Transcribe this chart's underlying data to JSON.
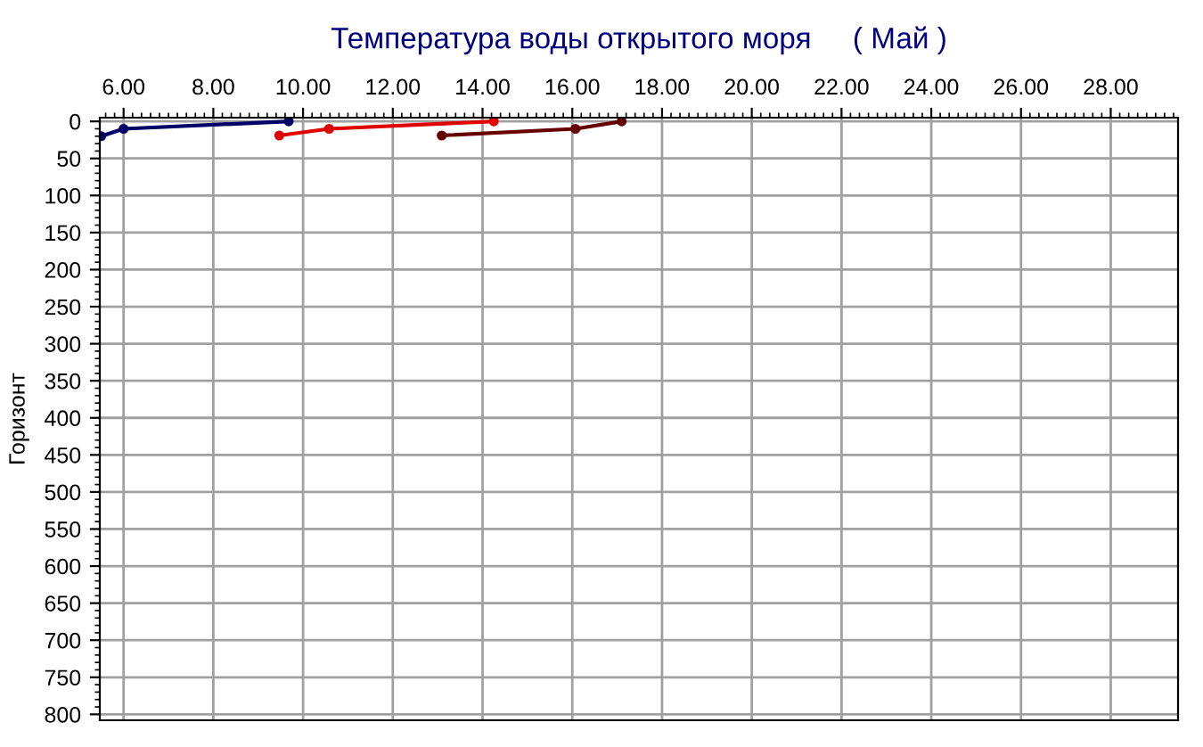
{
  "chart_data": {
    "type": "line",
    "title": "Температура воды открытого моря     ( Май )",
    "ylabel": "Горизонт",
    "xlim": [
      5.47,
      29.5
    ],
    "ylim": [
      808,
      -5
    ],
    "xticks": [
      {
        "value": 6,
        "label": "6.00"
      },
      {
        "value": 8,
        "label": "8.00"
      },
      {
        "value": 10,
        "label": "10.00"
      },
      {
        "value": 12,
        "label": "12.00"
      },
      {
        "value": 14,
        "label": "14.00"
      },
      {
        "value": 16,
        "label": "16.00"
      },
      {
        "value": 18,
        "label": "18.00"
      },
      {
        "value": 20,
        "label": "20.00"
      },
      {
        "value": 22,
        "label": "22.00"
      },
      {
        "value": 24,
        "label": "24.00"
      },
      {
        "value": 26,
        "label": "26.00"
      },
      {
        "value": 28,
        "label": "28.00"
      }
    ],
    "yticks": [
      0,
      50,
      100,
      150,
      200,
      250,
      300,
      350,
      400,
      450,
      500,
      550,
      600,
      650,
      700,
      750,
      800
    ],
    "grid": true,
    "marker": "circle",
    "line_style": "solid",
    "series": [
      {
        "color": "#000066",
        "x": [
          5.5,
          6.0,
          9.68
        ],
        "values": [
          20,
          10,
          0
        ]
      },
      {
        "color": "#e00000",
        "x": [
          9.47,
          10.58,
          14.25
        ],
        "values": [
          19,
          10,
          0
        ]
      },
      {
        "color": "#660000",
        "x": [
          13.09,
          16.07,
          17.1
        ],
        "values": [
          19,
          10,
          0
        ]
      }
    ]
  }
}
